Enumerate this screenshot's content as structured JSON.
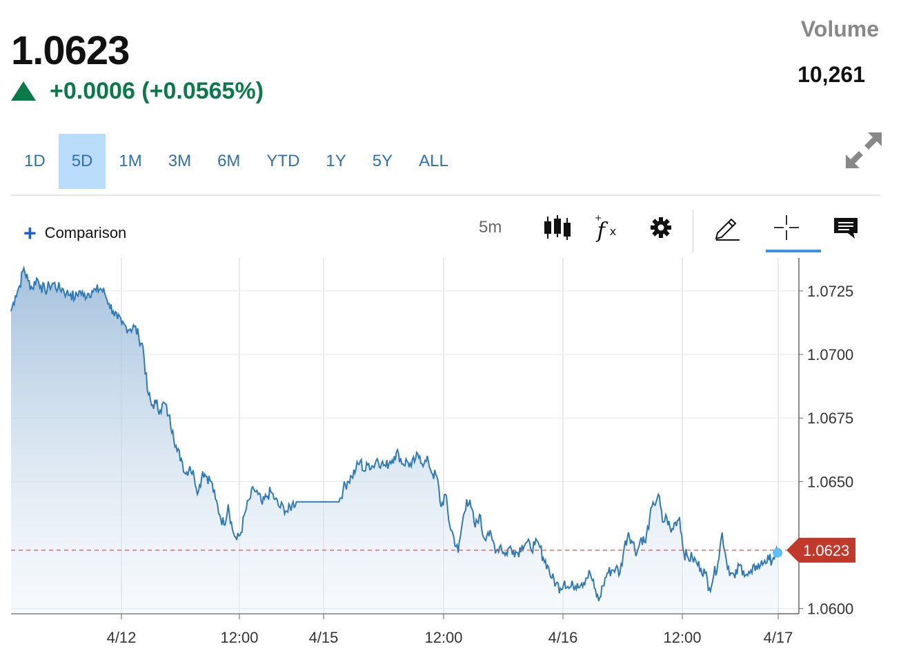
{
  "quote": {
    "price": "1.0623",
    "change": "+0.0006 (+0.0565%)",
    "direction": "up",
    "up_color": "#0b7a4b"
  },
  "volume": {
    "label": "Volume",
    "value": "10,261"
  },
  "ranges": [
    "1D",
    "5D",
    "1M",
    "3M",
    "6M",
    "YTD",
    "1Y",
    "5Y",
    "ALL"
  ],
  "active_range": "5D",
  "toolbar": {
    "comparison_label": "Comparison",
    "interval": "5m",
    "icons": [
      "candlestick-icon",
      "function-fx-icon",
      "gear-icon",
      "pencil-icon",
      "crosshair-icon",
      "comment-icon",
      "expand-icon"
    ],
    "active_tool": "crosshair-icon"
  },
  "chart_data": {
    "type": "area",
    "x_ticks": [
      "4/12",
      "12:00",
      "4/15",
      "12:00",
      "4/16",
      "12:00",
      "4/17"
    ],
    "y_ticks": [
      "1.0725",
      "1.0700",
      "1.0675",
      "1.0650",
      "1.0600"
    ],
    "ylim": [
      1.0598,
      1.0738
    ],
    "grid": true,
    "line_color": "#2e7ab8",
    "fill_color_top": "#9fbedb",
    "last_price_label": "1.0623",
    "last_price_value": 1.0623,
    "last_price_color": "#c0392b",
    "series": [
      {
        "values": [
          1.0717,
          1.0723,
          1.0727,
          1.0734,
          1.0729,
          1.0726,
          1.073,
          1.0727,
          1.0725,
          1.0727,
          1.0728,
          1.0726,
          1.0726,
          1.0724,
          1.0724,
          1.0722,
          1.0725,
          1.0723,
          1.0724,
          1.0725,
          1.0725,
          1.0726,
          1.0724,
          1.072,
          1.0717,
          1.0714,
          1.0712,
          1.0711,
          1.071,
          1.0711,
          1.0707,
          1.0703,
          1.0686,
          1.068,
          1.0681,
          1.0678,
          1.0681,
          1.0676,
          1.067,
          1.0662,
          1.0659,
          1.0653,
          1.0656,
          1.0652,
          1.0646,
          1.0654,
          1.0652,
          1.065,
          1.0643,
          1.0637,
          1.0633,
          1.0641,
          1.0631,
          1.0627,
          1.063,
          1.0638,
          1.0643,
          1.0647,
          1.0645,
          1.0641,
          1.0644,
          1.0646,
          1.0643,
          1.064,
          1.064,
          1.0638,
          1.0641,
          1.0642,
          1.0642,
          1.0642,
          1.0642,
          1.0642,
          1.0642,
          1.0642,
          1.0642,
          1.0642,
          1.0642,
          1.0642,
          1.0647,
          1.065,
          1.0652,
          1.0655,
          1.0658,
          1.0654,
          1.0657,
          1.0656,
          1.0659,
          1.0657,
          1.0656,
          1.0658,
          1.066,
          1.0661,
          1.0657,
          1.0658,
          1.0656,
          1.0659,
          1.066,
          1.0657,
          1.0658,
          1.0653,
          1.0652,
          1.064,
          1.0645,
          1.0633,
          1.0628,
          1.0622,
          1.0634,
          1.0643,
          1.064,
          1.0632,
          1.0637,
          1.0628,
          1.063,
          1.0627,
          1.0623,
          1.0625,
          1.0621,
          1.0624,
          1.0623,
          1.0622,
          1.0625,
          1.0626,
          1.0624,
          1.0625,
          1.0625,
          1.062,
          1.0617,
          1.0612,
          1.061,
          1.0608,
          1.0611,
          1.0608,
          1.0609,
          1.061,
          1.061,
          1.0612,
          1.0614,
          1.0608,
          1.0603,
          1.0609,
          1.0614,
          1.0615,
          1.0616,
          1.0614,
          1.0624,
          1.063,
          1.0626,
          1.0622,
          1.0628,
          1.0626,
          1.0636,
          1.0641,
          1.0645,
          1.0634,
          1.0636,
          1.063,
          1.0634,
          1.0636,
          1.0622,
          1.062,
          1.062,
          1.0618,
          1.0616,
          1.0614,
          1.0608,
          1.0613,
          1.0618,
          1.063,
          1.0619,
          1.0614,
          1.0612,
          1.0617,
          1.0615,
          1.0613,
          1.0614,
          1.0617,
          1.0617,
          1.0619,
          1.0619,
          1.062,
          1.0622
        ]
      }
    ]
  }
}
